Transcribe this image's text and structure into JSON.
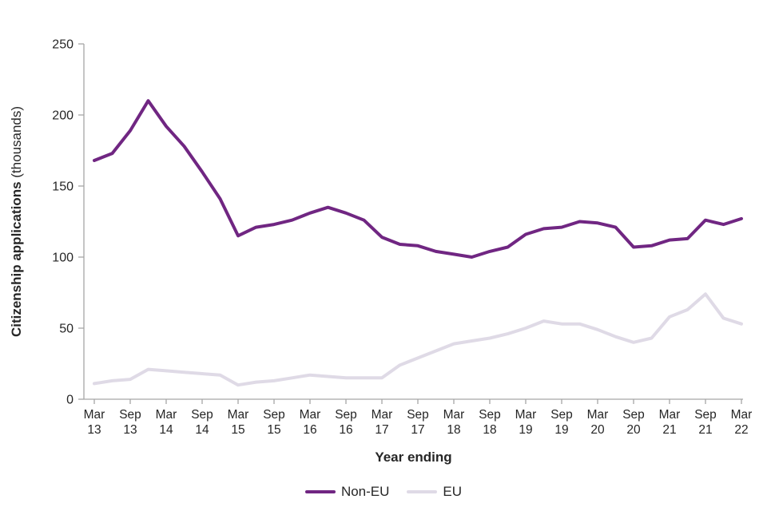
{
  "chart_data": {
    "type": "line",
    "title": "",
    "xlabel": "Year ending",
    "ylabel_bold": "Citizenship applications",
    "ylabel_normal": " (thousands)",
    "ylim": [
      0,
      250
    ],
    "yticks": [
      0,
      50,
      100,
      150,
      200,
      250
    ],
    "grid": false,
    "legend_position": "bottom",
    "points_per_tick": 2,
    "x_tick_labels": [
      [
        "Mar",
        "13"
      ],
      [
        "Sep",
        "13"
      ],
      [
        "Mar",
        "14"
      ],
      [
        "Sep",
        "14"
      ],
      [
        "Mar",
        "15"
      ],
      [
        "Sep",
        "15"
      ],
      [
        "Mar",
        "16"
      ],
      [
        "Sep",
        "16"
      ],
      [
        "Mar",
        "17"
      ],
      [
        "Sep",
        "17"
      ],
      [
        "Mar",
        "18"
      ],
      [
        "Sep",
        "18"
      ],
      [
        "Mar",
        "19"
      ],
      [
        "Sep",
        "19"
      ],
      [
        "Mar",
        "20"
      ],
      [
        "Sep",
        "20"
      ],
      [
        "Mar",
        "21"
      ],
      [
        "Sep",
        "21"
      ],
      [
        "Mar",
        "22"
      ]
    ],
    "series": [
      {
        "name": "Non-EU",
        "color": "#702682",
        "values": [
          168,
          173,
          189,
          210,
          192,
          178,
          160,
          141,
          115,
          121,
          123,
          126,
          131,
          135,
          131,
          126,
          114,
          109,
          108,
          104,
          102,
          100,
          104,
          107,
          116,
          120,
          121,
          125,
          124,
          121,
          107,
          108,
          112,
          113,
          126,
          123,
          127
        ]
      },
      {
        "name": "EU",
        "color": "#dfdae6",
        "values": [
          11,
          13,
          14,
          21,
          20,
          19,
          18,
          17,
          10,
          12,
          13,
          15,
          17,
          16,
          15,
          15,
          15,
          24,
          29,
          34,
          39,
          41,
          43,
          46,
          50,
          55,
          53,
          53,
          49,
          44,
          40,
          43,
          58,
          63,
          74,
          57,
          53
        ]
      }
    ]
  },
  "colors": {
    "axis": "#a6a6a6",
    "text": "#262626",
    "background": "#ffffff"
  }
}
